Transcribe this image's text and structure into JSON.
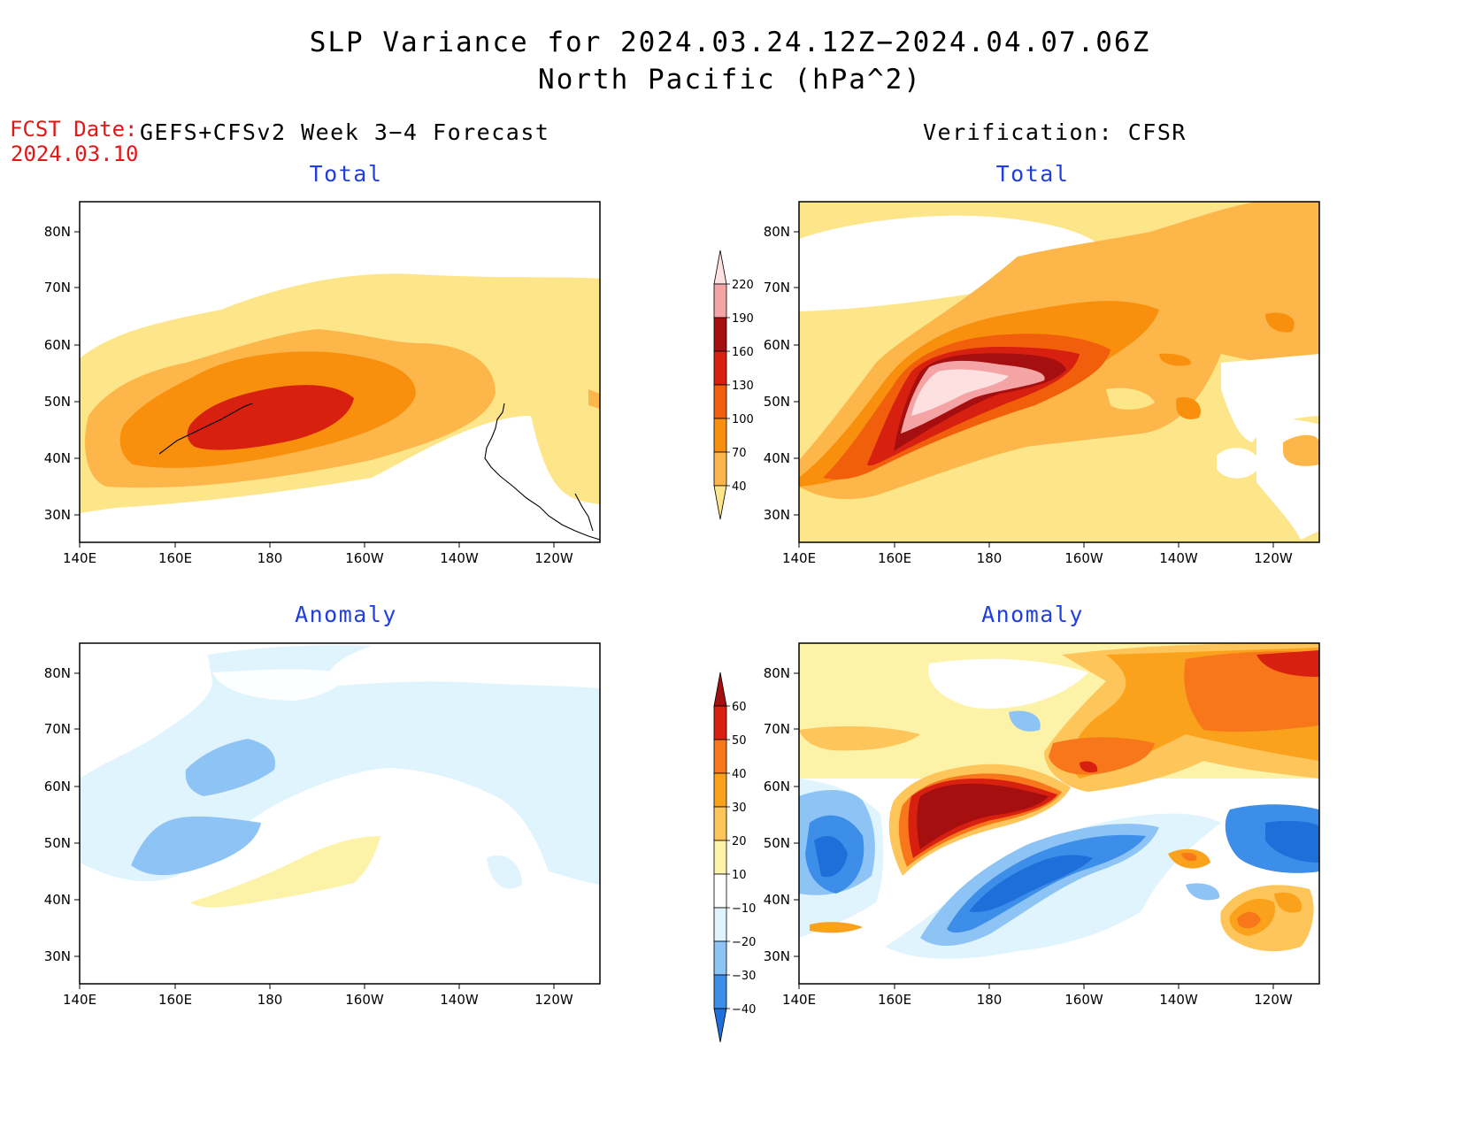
{
  "title_line1": "SLP Variance for 2024.03.24.12Z−2024.04.07.06Z",
  "title_line2": "North Pacific (hPa^2)",
  "fcst_date_label": "FCST Date:",
  "fcst_date_value": "2024.03.10",
  "left_header": "GEFS+CFSv2 Week 3−4 Forecast",
  "right_header": "Verification: CFSR",
  "panels": {
    "fc_total_title": "Total",
    "ver_total_title": "Total",
    "fc_anom_title": "Anomaly",
    "ver_anom_title": "Anomaly"
  },
  "lat_labels": [
    "80N",
    "70N",
    "60N",
    "50N",
    "40N",
    "30N"
  ],
  "lon_labels": [
    "140E",
    "160E",
    "180",
    "160W",
    "140W",
    "120W"
  ],
  "total_colorbar": {
    "levels": [
      "40",
      "70",
      "100",
      "130",
      "160",
      "190",
      "220"
    ],
    "colors": [
      "#fde68a",
      "#fdb64a",
      "#f9900d",
      "#f25f0c",
      "#d7200f",
      "#a50f0f",
      "#f4a4a4",
      "#fde0e0"
    ]
  },
  "anomaly_colorbar": {
    "levels": [
      "−40",
      "−30",
      "−20",
      "−10",
      "10",
      "20",
      "30",
      "40",
      "50",
      "60"
    ],
    "colors": [
      "#1e6fd9",
      "#3c8ee8",
      "#8ec3f6",
      "#dff4fc",
      "#ffffff",
      "#fdf3a8",
      "#fdc55a",
      "#fba21c",
      "#f7771a",
      "#d7200f",
      "#a50f0f"
    ]
  }
}
